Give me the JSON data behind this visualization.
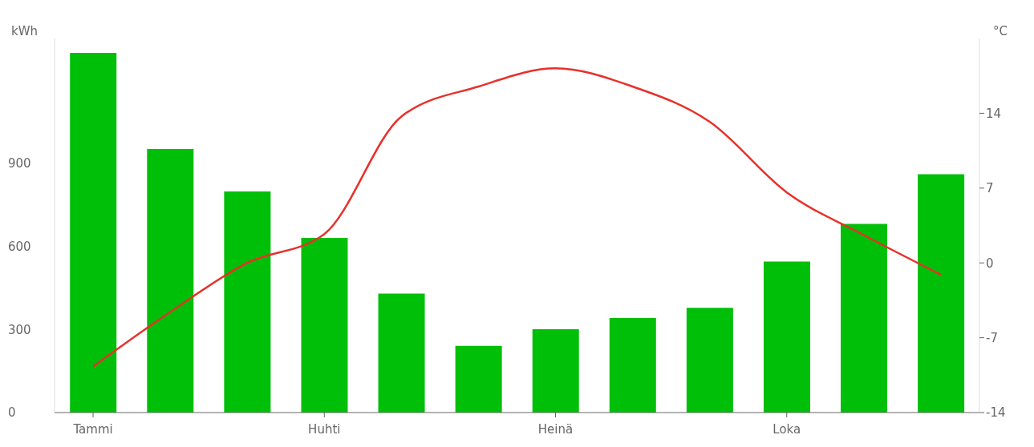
{
  "chart_data": {
    "type": "bar",
    "ylabel": "kWh",
    "y2label": "°C",
    "categories": [
      "Tammi",
      null,
      null,
      "Huhti",
      null,
      null,
      "Heinä",
      null,
      null,
      "Loka",
      null,
      null
    ],
    "series": [
      {
        "color": "#00bf08",
        "values": [
          1298,
          951,
          798,
          630,
          429,
          241,
          301,
          341,
          378,
          545,
          681,
          860
        ]
      },
      {
        "type": "line",
        "axis": "y2",
        "color": "#e8302a",
        "marker": "none",
        "values": [
          -9.7,
          -4.6,
          0,
          2.7,
          13.7,
          16.5,
          18.2,
          16.5,
          13.2,
          6.6,
          2.6,
          -1.1
        ]
      }
    ],
    "ylim": [
      0,
      1350
    ],
    "yticks": [
      0,
      300,
      600,
      900
    ],
    "y2lim": [
      -14,
      21
    ],
    "y2ticks": [
      -14,
      -7,
      0,
      7,
      14
    ],
    "legend": false,
    "grid": false
  }
}
